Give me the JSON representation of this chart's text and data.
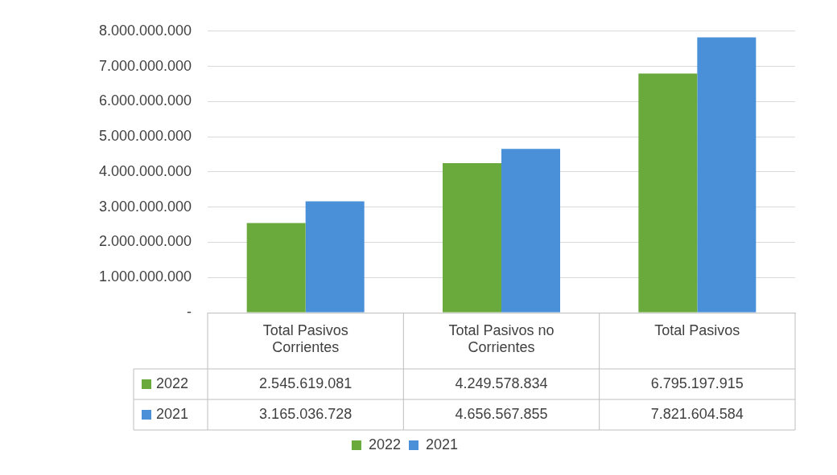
{
  "chart_data": {
    "type": "bar",
    "categories": [
      "Total Pasivos Corrientes",
      "Total Pasivos no Corrientes",
      "Total Pasivos"
    ],
    "series": [
      {
        "name": "2022",
        "color": "#6aaa3c",
        "values": [
          2545619081,
          4249578834,
          6795197915
        ],
        "value_labels": [
          "2.545.619.081",
          "4.249.578.834",
          "6.795.197.915"
        ]
      },
      {
        "name": "2021",
        "color": "#4a90d9",
        "values": [
          3165036728,
          4656567855,
          7821604584
        ],
        "value_labels": [
          "3.165.036.728",
          "4.656.567.855",
          "7.821.604.584"
        ]
      }
    ],
    "ylim": [
      0,
      8000000000
    ],
    "yticks": [
      {
        "value": 0,
        "label": "-"
      },
      {
        "value": 1000000000,
        "label": "1.000.000.000"
      },
      {
        "value": 2000000000,
        "label": "2.000.000.000"
      },
      {
        "value": 3000000000,
        "label": "3.000.000.000"
      },
      {
        "value": 4000000000,
        "label": "4.000.000.000"
      },
      {
        "value": 5000000000,
        "label": "5.000.000.000"
      },
      {
        "value": 6000000000,
        "label": "6.000.000.000"
      },
      {
        "value": 7000000000,
        "label": "7.000.000.000"
      },
      {
        "value": 8000000000,
        "label": "8.000.000.000"
      }
    ],
    "grid": "y",
    "legend": "bottom"
  }
}
